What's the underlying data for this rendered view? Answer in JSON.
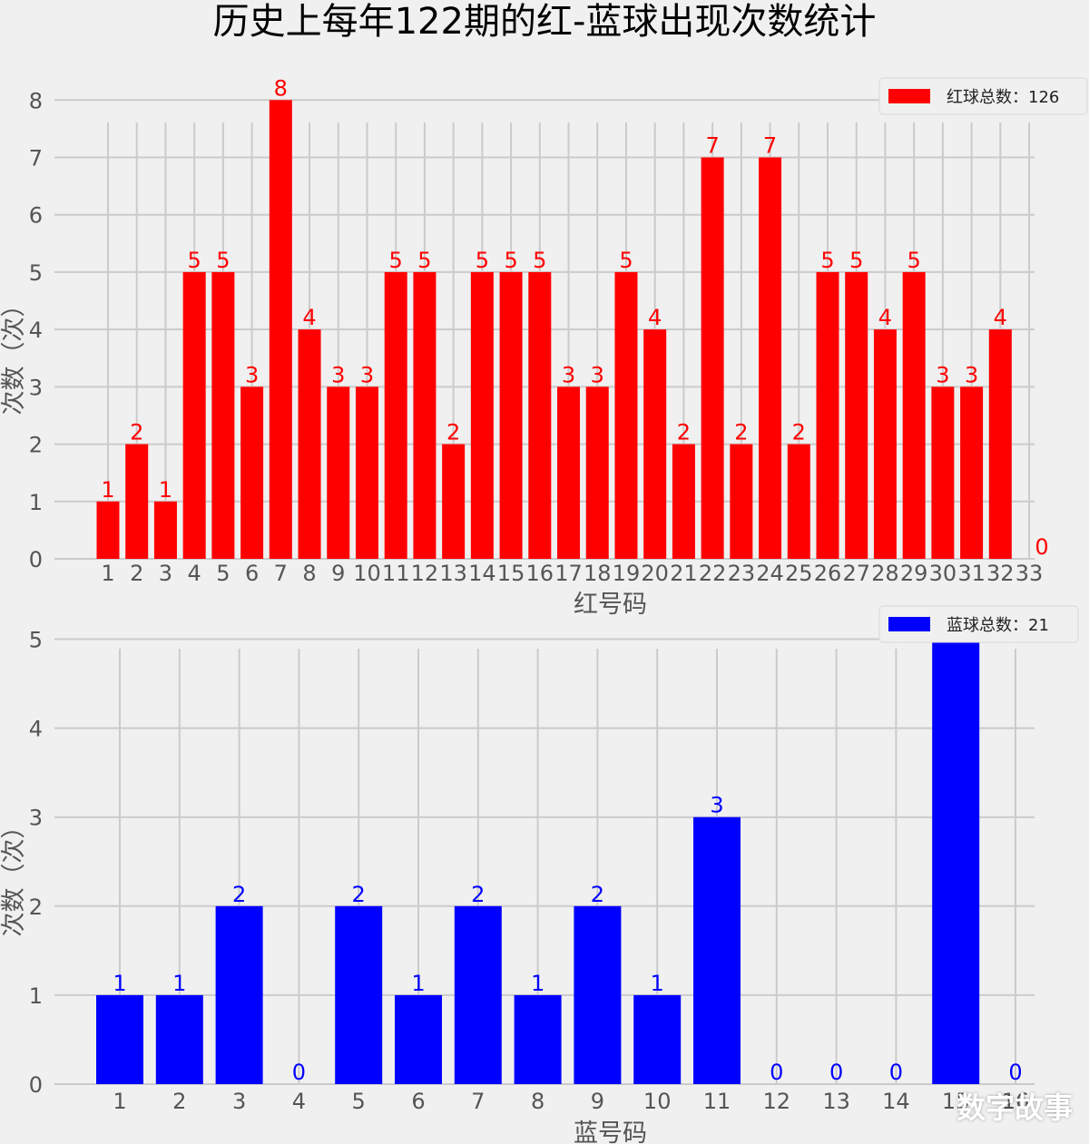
{
  "title": "历史上每年122期的红-蓝球出现次数统计",
  "watermark": "数字故事",
  "chart_data": [
    {
      "type": "bar",
      "color": "#ff0000",
      "categories": [
        "1",
        "2",
        "3",
        "4",
        "5",
        "6",
        "7",
        "8",
        "9",
        "10",
        "11",
        "12",
        "13",
        "14",
        "15",
        "16",
        "17",
        "18",
        "19",
        "20",
        "21",
        "22",
        "23",
        "24",
        "25",
        "26",
        "27",
        "28",
        "29",
        "30",
        "31",
        "32",
        "33"
      ],
      "values": [
        1,
        2,
        1,
        5,
        5,
        3,
        8,
        4,
        3,
        3,
        5,
        5,
        2,
        5,
        5,
        5,
        3,
        3,
        5,
        4,
        2,
        7,
        2,
        7,
        2,
        5,
        5,
        4,
        5,
        3,
        3,
        4,
        0
      ],
      "xlabel": "红号码",
      "ylabel": "次数（次）",
      "yticks": [
        0,
        1,
        2,
        3,
        4,
        5,
        6,
        7,
        8
      ],
      "ylim": [
        0,
        8.4
      ],
      "grid": true,
      "legend": {
        "label": "红球总数：126",
        "position": "top-right"
      }
    },
    {
      "type": "bar",
      "color": "#0000ff",
      "categories": [
        "1",
        "2",
        "3",
        "4",
        "5",
        "6",
        "7",
        "8",
        "9",
        "10",
        "11",
        "12",
        "13",
        "14",
        "15",
        "16"
      ],
      "values": [
        1,
        1,
        2,
        0,
        2,
        1,
        2,
        1,
        2,
        1,
        3,
        0,
        0,
        0,
        5,
        0
      ],
      "xlabel": "蓝号码",
      "ylabel": "次数（次）",
      "yticks": [
        0,
        1,
        2,
        3,
        4,
        5
      ],
      "ylim": [
        0,
        5.25
      ],
      "grid": true,
      "legend": {
        "label": "蓝球总数：21",
        "position": "top-right"
      }
    }
  ]
}
